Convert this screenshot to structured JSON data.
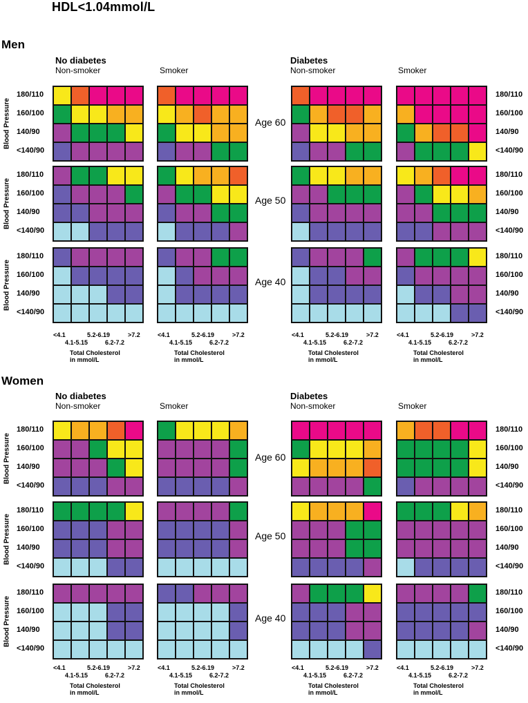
{
  "title": "HDL<1.04mmol/L",
  "palette": {
    "1": "#a8dce8",
    "2": "#6a5eb0",
    "3": "#a2449e",
    "4": "#0ea04a",
    "5": "#f8e81a",
    "6": "#f8b020",
    "7": "#f0602a",
    "8": "#ea0a88"
  },
  "labels": {
    "men": "Men",
    "women": "Women",
    "no_diabetes": "No diabetes",
    "diabetes": "Diabetes",
    "non_smoker": "Non-smoker",
    "smoker": "Smoker",
    "bp_axis": "Blood Pressure",
    "x_title_1": "Total Cholesterol",
    "x_title_2": "in mmol/L"
  },
  "bp_levels": [
    "180/110",
    "160/100",
    "140/90",
    "<140/90"
  ],
  "ages": [
    "Age 60",
    "Age 50",
    "Age 40"
  ],
  "cholesterol_ticks": [
    "<4.1",
    "4.1-5.15",
    "5.2-6.19",
    "6.2-7.2",
    ">7.2"
  ],
  "chart_data": {
    "type": "heatmap",
    "title": "HDL<1.04mmol/L",
    "xlabel": "Total Cholesterol in mmol/L",
    "ylabel": "Blood Pressure",
    "x": [
      "<4.1",
      "4.1-5.15",
      "5.2-6.19",
      "6.2-7.2",
      ">7.2"
    ],
    "y": [
      "180/110",
      "160/100",
      "140/90",
      "<140/90"
    ],
    "value_note": "color level codes 1-8 referencing palette",
    "grids": {
      "men": {
        "Age 60": {
          "no_diabetes_non_smoker": [
            [
              5,
              7,
              8,
              8,
              8
            ],
            [
              4,
              5,
              5,
              6,
              6
            ],
            [
              3,
              4,
              4,
              4,
              5
            ],
            [
              2,
              3,
              3,
              3,
              3
            ]
          ],
          "no_diabetes_smoker": [
            [
              7,
              8,
              8,
              8,
              8
            ],
            [
              5,
              6,
              7,
              6,
              6
            ],
            [
              4,
              5,
              5,
              6,
              6
            ],
            [
              2,
              3,
              3,
              4,
              4
            ]
          ],
          "diabetes_non_smoker": [
            [
              7,
              8,
              8,
              8,
              8
            ],
            [
              4,
              6,
              7,
              7,
              6
            ],
            [
              3,
              5,
              5,
              6,
              6
            ],
            [
              2,
              3,
              3,
              4,
              4
            ]
          ],
          "diabetes_smoker": [
            [
              8,
              8,
              8,
              8,
              8
            ],
            [
              6,
              8,
              8,
              8,
              8
            ],
            [
              4,
              6,
              7,
              7,
              8
            ],
            [
              3,
              4,
              4,
              4,
              5
            ]
          ]
        },
        "Age 50": {
          "no_diabetes_non_smoker": [
            [
              3,
              4,
              4,
              5,
              5
            ],
            [
              2,
              3,
              3,
              3,
              4
            ],
            [
              2,
              2,
              3,
              3,
              3
            ],
            [
              1,
              1,
              2,
              2,
              2
            ]
          ],
          "no_diabetes_smoker": [
            [
              4,
              5,
              6,
              6,
              7
            ],
            [
              3,
              4,
              4,
              5,
              5
            ],
            [
              2,
              3,
              3,
              4,
              4
            ],
            [
              1,
              2,
              2,
              2,
              3
            ]
          ],
          "diabetes_non_smoker": [
            [
              4,
              5,
              5,
              6,
              6
            ],
            [
              3,
              3,
              4,
              4,
              4
            ],
            [
              2,
              3,
              3,
              3,
              3
            ],
            [
              1,
              2,
              2,
              2,
              2
            ]
          ],
          "diabetes_smoker": [
            [
              5,
              6,
              7,
              8,
              8
            ],
            [
              3,
              4,
              5,
              5,
              6
            ],
            [
              3,
              3,
              4,
              4,
              4
            ],
            [
              2,
              2,
              3,
              3,
              3
            ]
          ]
        },
        "Age 40": {
          "no_diabetes_non_smoker": [
            [
              2,
              3,
              3,
              3,
              3
            ],
            [
              1,
              2,
              2,
              2,
              2
            ],
            [
              1,
              1,
              1,
              2,
              2
            ],
            [
              1,
              1,
              1,
              1,
              1
            ]
          ],
          "no_diabetes_smoker": [
            [
              2,
              3,
              3,
              4,
              4
            ],
            [
              1,
              2,
              3,
              3,
              3
            ],
            [
              1,
              2,
              2,
              2,
              2
            ],
            [
              1,
              1,
              1,
              1,
              1
            ]
          ],
          "diabetes_non_smoker": [
            [
              2,
              3,
              3,
              3,
              4
            ],
            [
              1,
              2,
              2,
              3,
              3
            ],
            [
              1,
              2,
              2,
              2,
              2
            ],
            [
              1,
              1,
              1,
              1,
              1
            ]
          ],
          "diabetes_smoker": [
            [
              3,
              4,
              4,
              4,
              5
            ],
            [
              2,
              3,
              3,
              3,
              3
            ],
            [
              1,
              2,
              2,
              3,
              3
            ],
            [
              1,
              1,
              1,
              2,
              2
            ]
          ]
        }
      },
      "women": {
        "Age 60": {
          "no_diabetes_non_smoker": [
            [
              5,
              6,
              6,
              7,
              8
            ],
            [
              3,
              3,
              4,
              5,
              5
            ],
            [
              3,
              3,
              3,
              4,
              5
            ],
            [
              2,
              2,
              2,
              3,
              3
            ]
          ],
          "no_diabetes_smoker": [
            [
              4,
              5,
              5,
              5,
              6
            ],
            [
              3,
              3,
              3,
              3,
              4
            ],
            [
              3,
              3,
              3,
              3,
              4
            ],
            [
              2,
              2,
              2,
              2,
              3
            ]
          ],
          "diabetes_non_smoker": [
            [
              8,
              8,
              8,
              8,
              8
            ],
            [
              4,
              5,
              5,
              5,
              6
            ],
            [
              5,
              6,
              6,
              6,
              7
            ],
            [
              3,
              3,
              3,
              3,
              4
            ]
          ],
          "diabetes_smoker": [
            [
              6,
              7,
              7,
              8,
              8
            ],
            [
              4,
              4,
              4,
              4,
              5
            ],
            [
              4,
              4,
              4,
              4,
              5
            ],
            [
              2,
              3,
              3,
              3,
              3
            ]
          ]
        },
        "Age 50": {
          "no_diabetes_non_smoker": [
            [
              4,
              4,
              4,
              4,
              5
            ],
            [
              2,
              2,
              2,
              3,
              3
            ],
            [
              2,
              2,
              2,
              3,
              3
            ],
            [
              1,
              1,
              1,
              2,
              2
            ]
          ],
          "no_diabetes_smoker": [
            [
              3,
              3,
              3,
              3,
              4
            ],
            [
              2,
              2,
              2,
              2,
              3
            ],
            [
              2,
              2,
              2,
              2,
              3
            ],
            [
              1,
              1,
              1,
              1,
              1
            ]
          ],
          "diabetes_non_smoker": [
            [
              5,
              6,
              6,
              6,
              8
            ],
            [
              3,
              3,
              3,
              4,
              4
            ],
            [
              3,
              3,
              3,
              4,
              4
            ],
            [
              2,
              2,
              2,
              2,
              3
            ]
          ],
          "diabetes_smoker": [
            [
              4,
              4,
              4,
              5,
              6
            ],
            [
              3,
              3,
              3,
              3,
              3
            ],
            [
              3,
              3,
              3,
              3,
              3
            ],
            [
              1,
              2,
              2,
              2,
              2
            ]
          ]
        },
        "Age 40": {
          "no_diabetes_non_smoker": [
            [
              3,
              3,
              3,
              3,
              3
            ],
            [
              1,
              1,
              1,
              2,
              2
            ],
            [
              1,
              1,
              1,
              2,
              2
            ],
            [
              1,
              1,
              1,
              1,
              1
            ]
          ],
          "no_diabetes_smoker": [
            [
              2,
              2,
              3,
              3,
              3
            ],
            [
              1,
              1,
              1,
              1,
              2
            ],
            [
              1,
              1,
              1,
              1,
              2
            ],
            [
              1,
              1,
              1,
              1,
              1
            ]
          ],
          "diabetes_non_smoker": [
            [
              3,
              4,
              4,
              4,
              5
            ],
            [
              2,
              2,
              2,
              3,
              3
            ],
            [
              2,
              2,
              2,
              3,
              3
            ],
            [
              1,
              1,
              1,
              1,
              2
            ]
          ],
          "diabetes_smoker": [
            [
              3,
              3,
              3,
              3,
              4
            ],
            [
              2,
              2,
              2,
              2,
              2
            ],
            [
              2,
              2,
              2,
              2,
              3
            ],
            [
              1,
              1,
              1,
              1,
              1
            ]
          ]
        }
      }
    }
  }
}
